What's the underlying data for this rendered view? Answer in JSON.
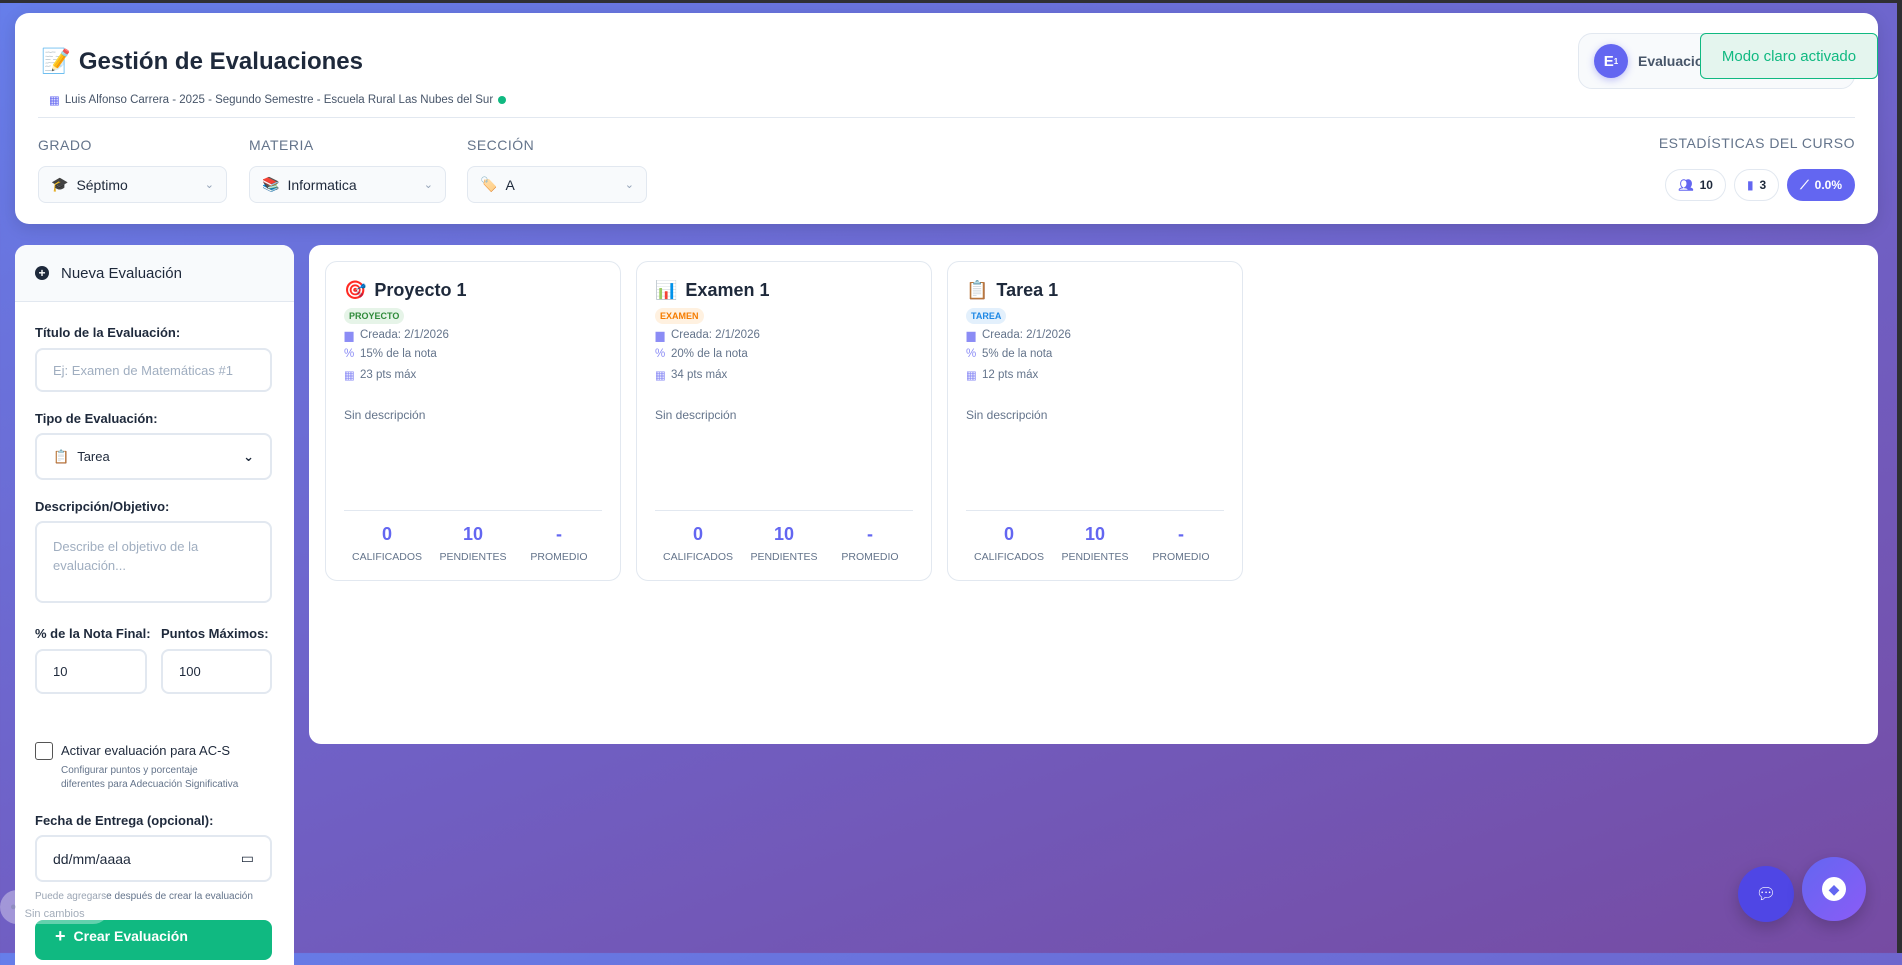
{
  "header": {
    "title": "Gestión de Evaluaciones",
    "title_icon": "memo-emoji",
    "subtitle": "Luis Alfonso Carrera - 2025 - Segundo Semestre - Escuela Rural Las Nubes del Sur",
    "status_color": "#10b981"
  },
  "filters": {
    "grado": {
      "label": "GRADO",
      "value": "Séptimo",
      "icon": "🎓"
    },
    "materia": {
      "label": "MATERIA",
      "value": "Informatica",
      "icon": "📚"
    },
    "seccion": {
      "label": "SECCIÓN",
      "value": "A",
      "icon": "🏷️"
    }
  },
  "user": {
    "avatar": "E",
    "avatar_sup": "1",
    "name": "Evaluacio"
  },
  "toast": "Modo claro activado",
  "stats": {
    "label": "ESTADÍSTICAS DEL CURSO",
    "students": "10",
    "evaluations": "3",
    "average": "0.0%"
  },
  "form": {
    "header": "Nueva Evaluación",
    "title_label": "Título de la Evaluación:",
    "title_placeholder": "Ej: Examen de Matemáticas #1",
    "type_label": "Tipo de Evaluación:",
    "type_value": "Tarea",
    "type_icon": "📋",
    "desc_label": "Descripción/Objetivo:",
    "desc_placeholder": "Describe el objetivo de la evaluación...",
    "percent_label": "% de la Nota Final:",
    "percent_value": "10",
    "points_label": "Puntos Máximos:",
    "points_value": "100",
    "acs_label": "Activar evaluación para AC-S",
    "acs_hint": "Configurar puntos y porcentaje diferentes para Adecuación Significativa",
    "date_label": "Fecha de Entrega (opcional):",
    "date_placeholder": "dd/mm/aaaa",
    "date_help": "Puede agregarse después de crear la evaluación",
    "submit": "Crear Evaluación"
  },
  "save_status": "Sin cambios",
  "cards": [
    {
      "icon": "🎯",
      "title": "Proyecto 1",
      "badge": "PROYECTO",
      "badge_color": "#2f8a3a",
      "badge_bg": "#e6f4e8",
      "created": "Creada: 2/1/2026",
      "percent": "15% de la nota",
      "points": "23 pts máx",
      "description": "Sin descripción",
      "graded": "0",
      "pending": "10",
      "average": "-"
    },
    {
      "icon": "📊",
      "title": "Examen 1",
      "badge": "EXAMEN",
      "badge_color": "#f57c00",
      "badge_bg": "#fff1e0",
      "created": "Creada: 2/1/2026",
      "percent": "20% de la nota",
      "points": "34 pts máx",
      "description": "Sin descripción",
      "graded": "0",
      "pending": "10",
      "average": "-"
    },
    {
      "icon": "📋",
      "title": "Tarea 1",
      "badge": "TAREA",
      "badge_color": "#1e88e5",
      "badge_bg": "#e3f0fc",
      "created": "Creada: 2/1/2026",
      "percent": "5% de la nota",
      "points": "12 pts máx",
      "description": "Sin descripción",
      "graded": "0",
      "pending": "10",
      "average": "-"
    }
  ],
  "card_labels": {
    "graded": "CALIFICADOS",
    "pending": "PENDIENTES",
    "average": "PROMEDIO"
  }
}
